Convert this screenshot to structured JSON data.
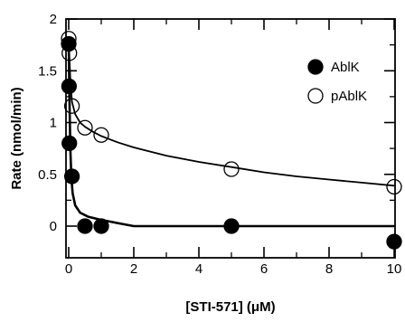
{
  "chart_data": {
    "type": "scatter",
    "xlabel": "[STI-571] (μM)",
    "ylabel": "Rate (nmol/min)",
    "xlim": [
      -0.1,
      10
    ],
    "ylim": [
      -0.15,
      2
    ],
    "x_ticks": [
      0,
      2,
      4,
      6,
      8,
      10
    ],
    "y_ticks": [
      0,
      0.5,
      1,
      1.5,
      2
    ],
    "x_tick_labels": [
      "0",
      "2",
      "4",
      "6",
      "8",
      "10"
    ],
    "y_tick_labels": [
      "0",
      "0.5",
      "1",
      "1.5",
      "2"
    ],
    "legend_position": "top-right",
    "grid": false,
    "series": [
      {
        "name": "AblK",
        "marker": "filled-circle",
        "color": "#000000",
        "points": [
          {
            "x": 0,
            "y": 1.76
          },
          {
            "x": 0.01,
            "y": 1.35
          },
          {
            "x": 0.02,
            "y": 0.8
          },
          {
            "x": 0.1,
            "y": 0.48
          },
          {
            "x": 0.5,
            "y": 0.0
          },
          {
            "x": 1.0,
            "y": 0.0
          },
          {
            "x": 5.0,
            "y": 0.0
          },
          {
            "x": 10.0,
            "y": -0.15
          }
        ],
        "fit_curve": [
          [
            0,
            1.76
          ],
          [
            0.02,
            1.3
          ],
          [
            0.05,
            0.75
          ],
          [
            0.08,
            0.48
          ],
          [
            0.12,
            0.32
          ],
          [
            0.2,
            0.2
          ],
          [
            0.35,
            0.13
          ],
          [
            0.6,
            0.09
          ],
          [
            1.0,
            0.06
          ],
          [
            1.5,
            0.03
          ],
          [
            2.0,
            0.0
          ],
          [
            5.0,
            0.0
          ],
          [
            10.0,
            0.0
          ]
        ]
      },
      {
        "name": "pAblK",
        "marker": "open-circle",
        "color": "#000000",
        "points": [
          {
            "x": 0,
            "y": 1.81
          },
          {
            "x": 0.02,
            "y": 1.67
          },
          {
            "x": 0.1,
            "y": 1.16
          },
          {
            "x": 0.5,
            "y": 0.95
          },
          {
            "x": 1.0,
            "y": 0.88
          },
          {
            "x": 5.0,
            "y": 0.55
          },
          {
            "x": 10.0,
            "y": 0.38
          }
        ],
        "fit_curve": [
          [
            0,
            1.81
          ],
          [
            0.02,
            1.65
          ],
          [
            0.05,
            1.42
          ],
          [
            0.1,
            1.2
          ],
          [
            0.2,
            1.08
          ],
          [
            0.35,
            1.0
          ],
          [
            0.5,
            0.96
          ],
          [
            0.75,
            0.91
          ],
          [
            1.0,
            0.87
          ],
          [
            1.5,
            0.81
          ],
          [
            2.0,
            0.76
          ],
          [
            3.0,
            0.68
          ],
          [
            4.0,
            0.62
          ],
          [
            5.0,
            0.57
          ],
          [
            6.0,
            0.52
          ],
          [
            7.0,
            0.48
          ],
          [
            8.0,
            0.45
          ],
          [
            9.0,
            0.42
          ],
          [
            10.0,
            0.39
          ]
        ]
      }
    ]
  }
}
